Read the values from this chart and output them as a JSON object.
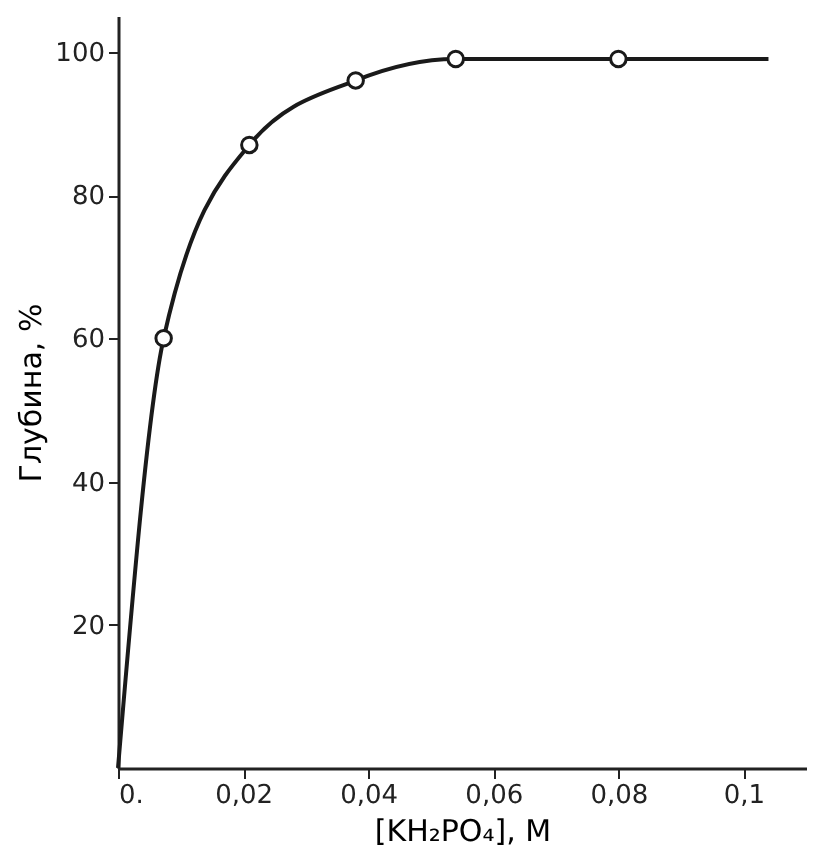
{
  "chart_data": {
    "type": "line",
    "xlabel": "[KH₂PO₄], M",
    "ylabel": "Глубина, %",
    "series": [
      {
        "color": "#1a1a1a",
        "marker": "none",
        "line_style": "solid",
        "x": [
          0,
          0.0073,
          0.021,
          0.038,
          0.054,
          0.08,
          0.104
        ],
        "values": [
          0,
          60,
          87,
          96,
          99,
          99,
          99
        ]
      },
      {
        "type": "scatter",
        "color": "#1a1a1a",
        "marker": "circle",
        "x": [
          0.0073,
          0.021,
          0.038,
          0.054,
          0.08
        ],
        "values": [
          60,
          87,
          96,
          99,
          99
        ]
      }
    ],
    "xlim": [
      0,
      0.11
    ],
    "ylim": [
      0,
      105
    ],
    "xticks": [
      {
        "value": 0,
        "label": "0."
      },
      {
        "value": 0.02,
        "label": "0,02"
      },
      {
        "value": 0.04,
        "label": "0,04"
      },
      {
        "value": 0.06,
        "label": "0,06"
      },
      {
        "value": 0.08,
        "label": "0,08"
      },
      {
        "value": 0.1,
        "label": "0,1"
      }
    ],
    "yticks": [
      20,
      40,
      60,
      80,
      100
    ],
    "grid": false
  }
}
